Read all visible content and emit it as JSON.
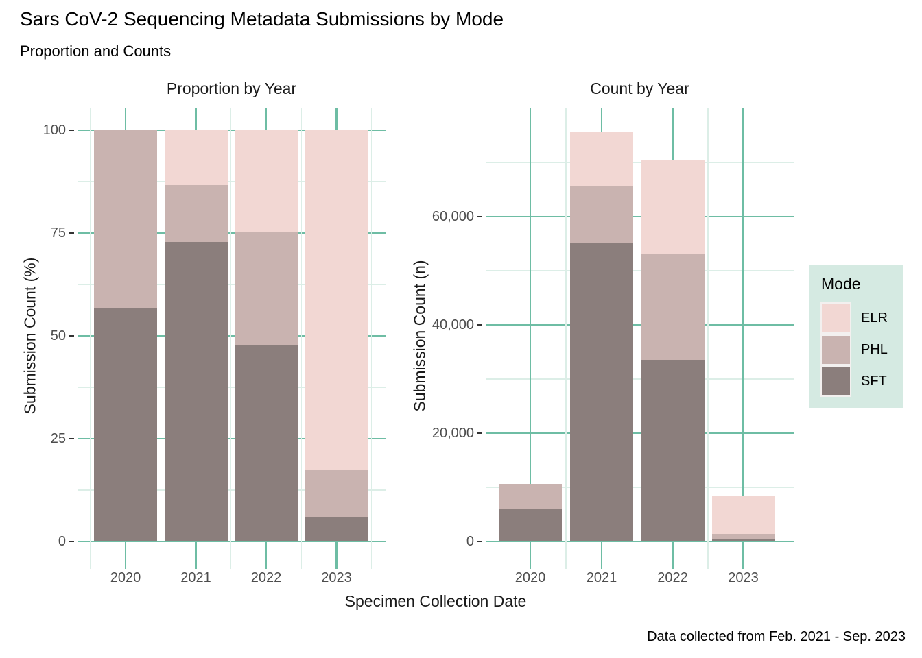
{
  "header": {
    "title": "Sars CoV-2 Sequencing Metadata Submissions by Mode",
    "subtitle": "Proportion and Counts"
  },
  "caption": "Data collected from Feb. 2021 - Sep. 2023",
  "axes": {
    "x_title": "Specimen Collection Date",
    "left_y_title": "Submission Count (%)",
    "right_y_title": "Submission Count (n)"
  },
  "legend": {
    "title": "Mode",
    "items": [
      {
        "label": "ELR",
        "color": "#f2d7d3"
      },
      {
        "label": "PHL",
        "color": "#c9b3b0"
      },
      {
        "label": "SFT",
        "color": "#8b7e7c"
      }
    ]
  },
  "style": {
    "major_grid_color": "#6ebda4",
    "minor_grid_color": "#dceee7",
    "axis_tick_color": "#333333",
    "tick_label_color": "#4d4d4d",
    "legend_bg_color": "#d5eae2",
    "legend_key_bg_color": "#f3f0ef"
  },
  "chart_data": [
    {
      "type": "bar",
      "stacked": true,
      "title": "Proportion by Year",
      "categories": [
        "2020",
        "2021",
        "2022",
        "2023"
      ],
      "series": [
        {
          "name": "SFT",
          "color": "#8b7e7c",
          "values": [
            56.7,
            72.9,
            47.6,
            6.0
          ]
        },
        {
          "name": "PHL",
          "color": "#c9b3b0",
          "values": [
            43.3,
            13.8,
            27.7,
            11.3
          ]
        },
        {
          "name": "ELR",
          "color": "#f2d7d3",
          "values": [
            0,
            13.3,
            24.7,
            82.7
          ]
        }
      ],
      "xlabel": "Specimen Collection Date",
      "ylabel": "Submission Count (%)",
      "ylim": [
        0,
        100
      ],
      "yticks": [
        {
          "value": 0,
          "label": "0"
        },
        {
          "value": 25,
          "label": "25"
        },
        {
          "value": 50,
          "label": "50"
        },
        {
          "value": 75,
          "label": "75"
        },
        {
          "value": 100,
          "label": "100"
        }
      ],
      "grid": true,
      "legend_position": "right"
    },
    {
      "type": "bar",
      "stacked": true,
      "title": "Count by Year",
      "categories": [
        "2020",
        "2021",
        "2022",
        "2023"
      ],
      "series": [
        {
          "name": "SFT",
          "color": "#8b7e7c",
          "values": [
            5950,
            55200,
            33500,
            500
          ]
        },
        {
          "name": "PHL",
          "color": "#c9b3b0",
          "values": [
            4680,
            10400,
            19500,
            950
          ]
        },
        {
          "name": "ELR",
          "color": "#f2d7d3",
          "values": [
            0,
            10100,
            17400,
            7050
          ]
        }
      ],
      "xlabel": "Specimen Collection Date",
      "ylabel": "Submission Count (n)",
      "ylim": [
        0,
        80000
      ],
      "yticks": [
        {
          "value": 0,
          "label": "0"
        },
        {
          "value": 20000,
          "label": "20,000"
        },
        {
          "value": 40000,
          "label": "40,000"
        },
        {
          "value": 60000,
          "label": "60,000"
        }
      ],
      "grid": true,
      "legend_position": "right"
    }
  ]
}
